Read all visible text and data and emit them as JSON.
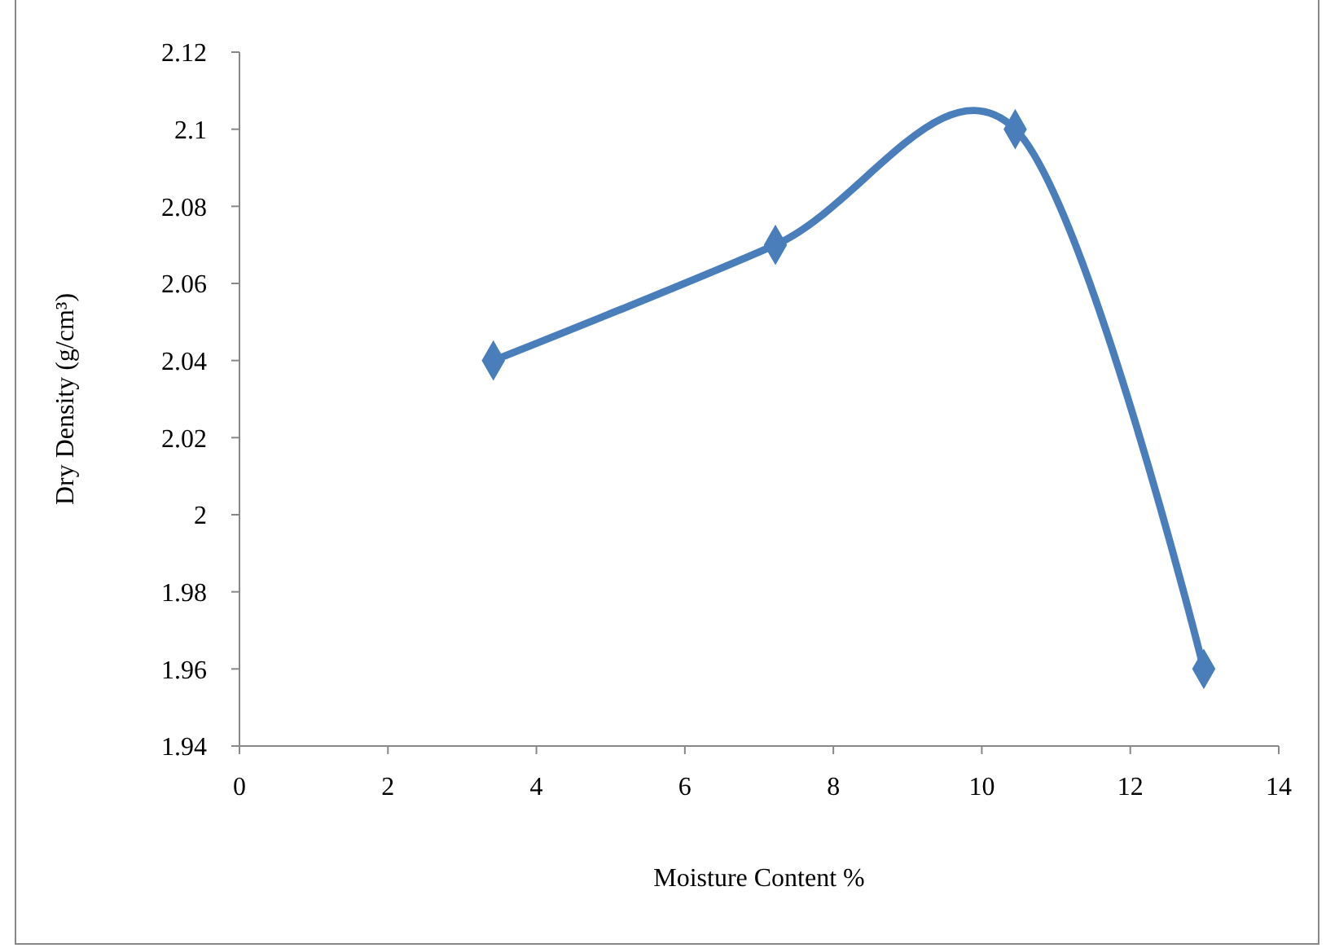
{
  "chart_data": {
    "type": "line",
    "xlabel": "Moisture Content %",
    "ylabel": "Dry Density (g/cm³)",
    "x": [
      3.42,
      7.22,
      10.45,
      12.99
    ],
    "series": [
      {
        "color": "#4a7ebb",
        "values": [
          2.04,
          2.07,
          2.1,
          1.96
        ]
      }
    ],
    "xlim": [
      0,
      14
    ],
    "xticks": [
      0,
      2,
      4,
      6,
      8,
      10,
      12,
      14
    ],
    "ylim": [
      1.94,
      2.12
    ],
    "yticks": [
      1.94,
      1.96,
      1.98,
      2,
      2.02,
      2.04,
      2.06,
      2.08,
      2.1,
      2.12
    ],
    "grid": false,
    "marker": "diamond",
    "line_style": "solid"
  }
}
